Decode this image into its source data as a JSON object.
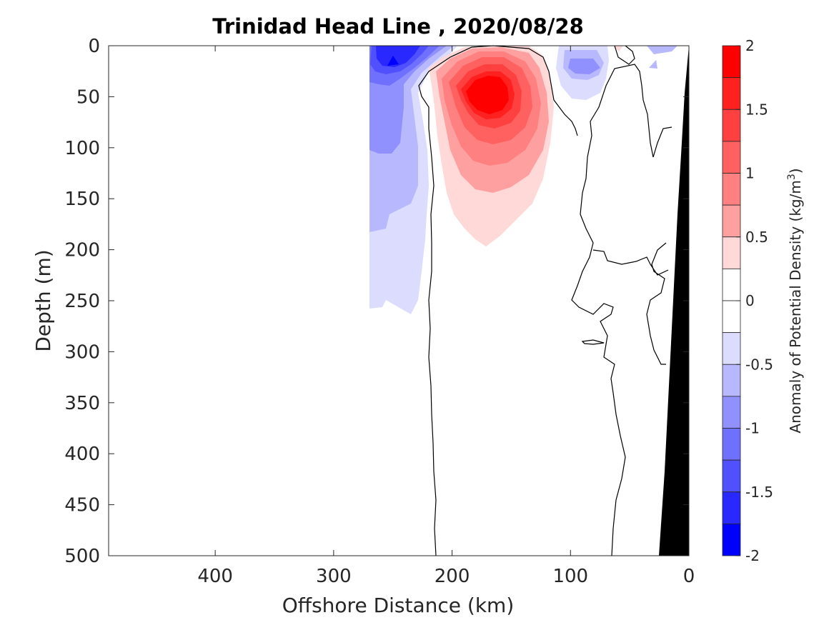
{
  "chart_data": {
    "type": "heatmap",
    "subtype": "filled-contour section",
    "title": "Trinidad Head Line , 2020/08/28",
    "xlabel": "Offshore Distance (km)",
    "ylabel": "Depth (m)",
    "xlim": [
      490,
      0
    ],
    "ylim": [
      500,
      0
    ],
    "x_direction": "reversed",
    "y_direction": "reversed (depth increases downward)",
    "x_ticks": [
      400,
      300,
      200,
      100,
      0
    ],
    "y_ticks": [
      0,
      50,
      100,
      150,
      200,
      250,
      300,
      350,
      400,
      450,
      500
    ],
    "colorbar": {
      "label_pre": "Anomaly of Potential Density (kg/m",
      "label_sup": "3",
      "label_post": ")",
      "limits": [
        -2,
        2
      ],
      "tick_labels": [
        "2",
        "1.5",
        "1",
        "0.5",
        "0",
        "-0.5",
        "-1",
        "-1.5",
        "-2"
      ],
      "tick_values": [
        2,
        1.5,
        1,
        0.5,
        0,
        -0.5,
        -1,
        -1.5,
        -2
      ],
      "levels": [
        {
          "lo": 1.75,
          "hi": 2.0,
          "color": "#ff0000"
        },
        {
          "lo": 1.5,
          "hi": 1.75,
          "color": "#ff2020"
        },
        {
          "lo": 1.25,
          "hi": 1.5,
          "color": "#ff4040"
        },
        {
          "lo": 1.0,
          "hi": 1.25,
          "color": "#ff6060"
        },
        {
          "lo": 0.75,
          "hi": 1.0,
          "color": "#ff8080"
        },
        {
          "lo": 0.5,
          "hi": 0.75,
          "color": "#ffa0a0"
        },
        {
          "lo": 0.25,
          "hi": 0.5,
          "color": "#ffd8d8"
        },
        {
          "lo": 0.0,
          "hi": 0.25,
          "color": "#ffffff"
        },
        {
          "lo": -0.25,
          "hi": 0.0,
          "color": "#ffffff"
        },
        {
          "lo": -0.5,
          "hi": -0.25,
          "color": "#dcdcff"
        },
        {
          "lo": -0.75,
          "hi": -0.5,
          "color": "#b8b8ff"
        },
        {
          "lo": -1.0,
          "hi": -0.75,
          "color": "#9090ff"
        },
        {
          "lo": -1.25,
          "hi": -1.0,
          "color": "#7070ff"
        },
        {
          "lo": -1.5,
          "hi": -1.25,
          "color": "#5050ff"
        },
        {
          "lo": -1.75,
          "hi": -1.5,
          "color": "#2828ff"
        },
        {
          "lo": -2.0,
          "hi": -1.75,
          "color": "#0000ff"
        }
      ]
    },
    "features": [
      {
        "name": "positive-anomaly-core",
        "center_km": 170,
        "center_depth_m": 50,
        "peak_value": 1.75
      },
      {
        "name": "negative-anomaly-nearshore-west",
        "center_km": 250,
        "center_depth_m": 15,
        "peak_value": -1.75
      },
      {
        "name": "negative-anomaly-east",
        "center_km": 90,
        "center_depth_m": 20,
        "peak_value": -1.0
      },
      {
        "name": "bathymetry",
        "description_color": "#000000"
      }
    ],
    "data_extent_km": [
      0,
      270
    ],
    "grid": false
  }
}
